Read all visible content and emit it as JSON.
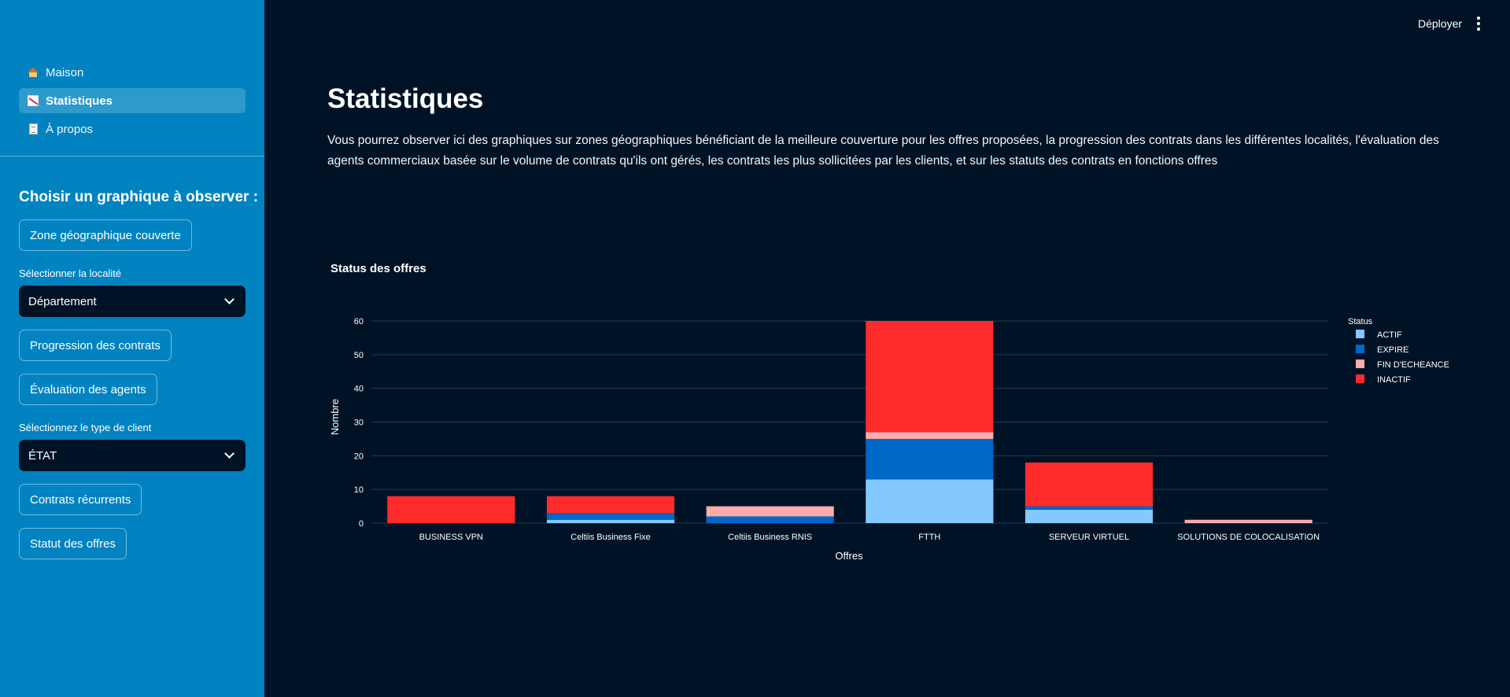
{
  "sidebar": {
    "nav": [
      {
        "label": "Maison",
        "icon": "home-icon"
      },
      {
        "label": "Statistiques",
        "icon": "chart-icon"
      },
      {
        "label": "À propos",
        "icon": "document-icon"
      }
    ],
    "section_title": "Choisir un graphique à observer :",
    "btn_zone": "Zone géographique couverte",
    "label_localite": "Sélectionner la localité",
    "select_localite": "Département",
    "btn_progression": "Progression des contrats",
    "btn_evaluation": "Évaluation des agents",
    "label_client": "Sélectionnez le type de client",
    "select_client": "ÉTAT",
    "btn_recurrents": "Contrats récurrents",
    "btn_statut": "Statut des offres"
  },
  "header": {
    "deploy_label": "Déployer"
  },
  "main": {
    "title": "Statistiques",
    "description": "Vous pourrez observer ici des graphiques sur zones géographiques bénéficiant de la meilleure couverture pour les offres proposées, la progression des contrats dans les différentes localités, l'évaluation des agents commerciaux basée sur le volume de contrats qu'ils ont gérés, les contrats les plus sollicitées par les clients, et sur les statuts des contrats en fonctions offres"
  },
  "chart_data": {
    "type": "bar",
    "stacked": true,
    "title": "Status des offres",
    "xlabel": "Offres",
    "ylabel": "Nombre",
    "ylim": [
      0,
      60
    ],
    "yticks": [
      0,
      10,
      20,
      30,
      40,
      50,
      60
    ],
    "legend_title": "Status",
    "legend_position": "right",
    "grid": true,
    "categories": [
      "BUSINESS VPN",
      "Celtiis Business Fixe",
      "Celtiis Business RNIS",
      "FTTH",
      "SERVEUR VIRTUEL",
      "SOLUTIONS DE COLOCALISATION"
    ],
    "series": [
      {
        "name": "ACTIF",
        "color": "#83c9ff",
        "values": [
          0,
          1,
          0,
          13,
          4,
          0
        ]
      },
      {
        "name": "EXPIRE",
        "color": "#0068c9",
        "values": [
          0,
          2,
          2,
          12,
          1,
          0
        ]
      },
      {
        "name": "FIN D'ECHEANCE",
        "color": "#ffabab",
        "values": [
          0,
          0,
          3,
          2,
          0,
          1
        ]
      },
      {
        "name": "INACTIF",
        "color": "#ff2b2b",
        "values": [
          8,
          5,
          0,
          33,
          13,
          0
        ]
      }
    ]
  }
}
